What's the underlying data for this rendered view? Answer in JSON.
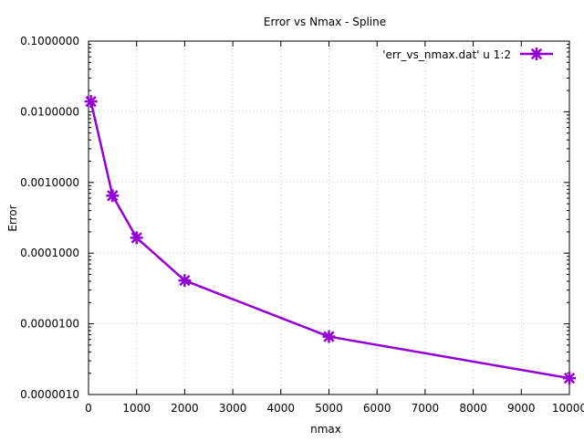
{
  "chart_data": {
    "type": "line",
    "title": "Error vs Nmax - Spline",
    "xlabel": "nmax",
    "ylabel": "Error",
    "xlim": [
      0,
      10000
    ],
    "ylim": [
      1e-06,
      0.1
    ],
    "yscale": "log",
    "grid": true,
    "legend_position": "top-right",
    "x_ticks": [
      0,
      1000,
      2000,
      3000,
      4000,
      5000,
      6000,
      7000,
      8000,
      9000,
      10000
    ],
    "x_tick_labels": [
      "0",
      "1000",
      "2000",
      "3000",
      "4000",
      "5000",
      "6000",
      "7000",
      "8000",
      "9000",
      "10000"
    ],
    "y_ticks": [
      1e-06,
      1e-05,
      0.0001,
      0.001,
      0.01,
      0.1
    ],
    "y_tick_labels": [
      "0.0000010",
      "0.0000100",
      "0.0001000",
      "0.0010000",
      "0.0100000",
      "0.1000000"
    ],
    "series": [
      {
        "name": "'err_vs_nmax.dat' u 1:2",
        "color": "#9400d3",
        "x": [
          50,
          500,
          1000,
          2000,
          5000,
          10000
        ],
        "y": [
          0.014,
          0.00065,
          0.000165,
          4.1e-05,
          6.6e-06,
          1.7e-06
        ]
      }
    ]
  }
}
